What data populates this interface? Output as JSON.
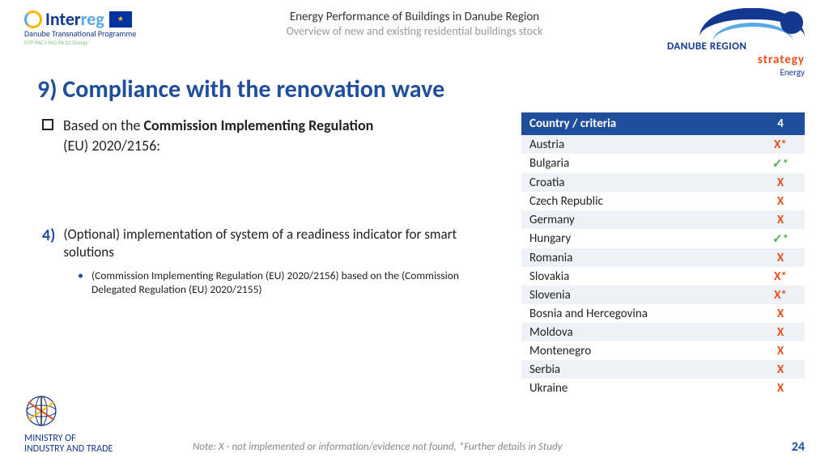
{
  "header": {
    "logo_left": {
      "line1_a": "Inter",
      "line1_b": "reg",
      "line2": "Danube Transnational Programme",
      "line3": "DTP-PAC1-PA2 PA 02 Energy"
    },
    "title": "Energy Performance of Buildings in Danube Region",
    "subtitle": "Overview of new and existing residential buildings stock",
    "logo_right": {
      "l1": "DANUBE REGION",
      "l2": "strategy",
      "l3": "Energy"
    }
  },
  "title": "9) Compliance with the renovation wave",
  "bullet": {
    "pre": "Based on the ",
    "bold": "Commission Implementing Regulation",
    "post": "(EU) 2020/2156:"
  },
  "sec4": {
    "num": "4)",
    "text": "(Optional) implementation of system of a readiness indicator for smart solutions",
    "sub": "(Commission Implementing Regulation (EU) 2020/2156) based on the (Commission Delegated Regulation (EU) 2020/2155)"
  },
  "table": {
    "h1": "Country / criteria",
    "h2": "4",
    "rows": [
      {
        "c": "Austria",
        "m": "X*",
        "alt": true
      },
      {
        "c": "Bulgaria",
        "m": "✓*",
        "alt": false,
        "check": true
      },
      {
        "c": "Croatia",
        "m": "X",
        "alt": true
      },
      {
        "c": "Czech Republic",
        "m": "X",
        "alt": false
      },
      {
        "c": "Germany",
        "m": "X",
        "alt": true
      },
      {
        "c": "Hungary",
        "m": "✓*",
        "alt": false,
        "check": true
      },
      {
        "c": "Romania",
        "m": "X",
        "alt": true
      },
      {
        "c": "Slovakia",
        "m": "X*",
        "alt": false
      },
      {
        "c": "Slovenia",
        "m": "X*",
        "alt": true
      },
      {
        "c": "Bosnia and Hercegovina",
        "m": "X",
        "alt": false
      },
      {
        "c": "Moldova",
        "m": "X",
        "alt": true
      },
      {
        "c": "Montenegro",
        "m": "X",
        "alt": false
      },
      {
        "c": "Serbia",
        "m": "X",
        "alt": true
      },
      {
        "c": "Ukraine",
        "m": "X",
        "alt": false
      }
    ]
  },
  "footer": {
    "mit1": "MINISTRY OF",
    "mit2": "INDUSTRY AND TRADE",
    "note": "Note: X - not implemented or information/evidence not found, *Further details in Study",
    "page": "24"
  },
  "colors": {
    "accent": "#1f4e9c",
    "x": "#e84e1c",
    "check": "#4caf50"
  }
}
